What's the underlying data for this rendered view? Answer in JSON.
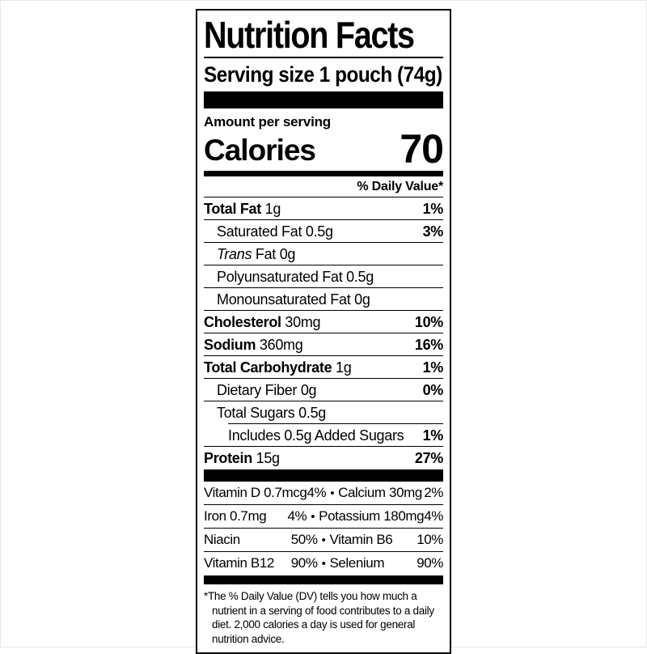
{
  "label": {
    "title": "Nutrition Facts",
    "serving_size": "Serving size 1 pouch (74g)",
    "amount_per_serving": "Amount per serving",
    "calories": {
      "label": "Calories",
      "value": "70"
    },
    "daily_value_header": "% Daily Value*",
    "nutrients": [
      {
        "b": "Total Fat",
        "i": "",
        "r": "1g",
        "dv": "1%"
      },
      {
        "b": "",
        "i": "",
        "r": "Saturated Fat 0.5g",
        "dv": "3%"
      },
      {
        "b": "",
        "i": "Trans",
        "r": "Fat 0g",
        "dv": ""
      },
      {
        "b": "",
        "i": "",
        "r": "Polyunsaturated Fat 0.5g",
        "dv": ""
      },
      {
        "b": "",
        "i": "",
        "r": "Monounsaturated Fat 0g",
        "dv": ""
      },
      {
        "b": "Cholesterol",
        "i": "",
        "r": "30mg",
        "dv": "10%"
      },
      {
        "b": "Sodium",
        "i": "",
        "r": "360mg",
        "dv": "16%"
      },
      {
        "b": "Total Carbohydrate",
        "i": "",
        "r": "1g",
        "dv": "1%"
      },
      {
        "b": "",
        "i": "",
        "r": "Dietary Fiber 0g",
        "dv": "0%"
      },
      {
        "b": "",
        "i": "",
        "r": "Total Sugars 0.5g",
        "dv": ""
      },
      {
        "b": "",
        "i": "",
        "r": "Includes 0.5g Added Sugars",
        "dv": "1%"
      },
      {
        "b": "Protein",
        "i": "",
        "r": "15g",
        "dv": "27%"
      }
    ],
    "vitamins_bullet": "•",
    "vitamins": [
      {
        "l": "Vitamin D 0.7mcg",
        "lp": "4%",
        "r": "Calcium 30mg",
        "rp": "2%"
      },
      {
        "l": "Iron 0.7mg",
        "lp": "4%",
        "r": "Potassium 180mg",
        "rp": "4%"
      },
      {
        "l": "Niacin",
        "lp": "50%",
        "r": "Vitamin B6",
        "rp": "10%"
      },
      {
        "l": "Vitamin B12",
        "lp": "90%",
        "r": "Selenium",
        "rp": "90%"
      }
    ],
    "footnote_marker": "*",
    "footnote": "The % Daily Value (DV) tells you how much a nutrient in a serving of food contributes to a daily diet. 2,000 calories a day is used for general nutrition advice.",
    "colors": {
      "ink": "#000000",
      "paper": "#ffffff"
    }
  }
}
